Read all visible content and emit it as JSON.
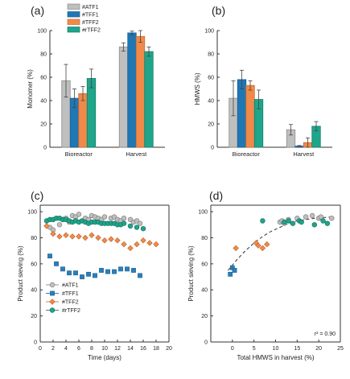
{
  "chart_data": [
    {
      "panel": "(a)",
      "type": "bar",
      "ylabel": "Monomer (%)",
      "xlabel": "",
      "ylim": [
        0,
        100
      ],
      "yticks": [
        0,
        20,
        40,
        60,
        80,
        100
      ],
      "categories": [
        "Bioreactor",
        "Harvest"
      ],
      "series": [
        {
          "name": "#ATF1",
          "values": [
            57,
            86
          ],
          "errors": [
            14,
            3.5
          ]
        },
        {
          "name": "#TFF1",
          "values": [
            42,
            98
          ],
          "errors": [
            8,
            1.5
          ]
        },
        {
          "name": "#TFF2",
          "values": [
            46,
            95
          ],
          "errors": [
            6,
            5
          ]
        },
        {
          "name": "#rTFF2",
          "values": [
            59,
            82
          ],
          "errors": [
            8,
            4
          ]
        }
      ],
      "legend_position": "top-left"
    },
    {
      "panel": "(b)",
      "type": "bar",
      "ylabel": "HMWS (%)",
      "xlabel": "",
      "ylim": [
        0,
        100
      ],
      "yticks": [
        0,
        20,
        40,
        60,
        80,
        100
      ],
      "categories": [
        "Bioreactor",
        "Harvest"
      ],
      "series": [
        {
          "name": "#ATF1",
          "values": [
            42,
            15
          ],
          "errors": [
            15,
            4.5
          ]
        },
        {
          "name": "#TFF1",
          "values": [
            58,
            1
          ],
          "errors": [
            8,
            0.5
          ]
        },
        {
          "name": "#TFF2",
          "values": [
            53,
            4
          ],
          "errors": [
            4,
            4
          ]
        },
        {
          "name": "#rTFF2",
          "values": [
            41,
            18
          ],
          "errors": [
            8,
            4
          ]
        }
      ]
    },
    {
      "panel": "(c)",
      "type": "scatter",
      "xlabel": "Time (days)",
      "ylabel": "Product sieving (%)",
      "xlim": [
        0,
        20
      ],
      "ylim": [
        0,
        105
      ],
      "xticks": [
        0,
        2,
        4,
        6,
        8,
        10,
        12,
        14,
        16,
        18,
        20
      ],
      "yticks": [
        0,
        20,
        40,
        60,
        80,
        100
      ],
      "legend_position": "bottom-left",
      "series": [
        {
          "name": "#ATF1",
          "marker": "circle",
          "x": [
            1.5,
            2,
            3,
            3.5,
            4,
            4.5,
            5,
            5.5,
            6,
            7,
            7.5,
            8,
            8.5,
            9,
            9.5,
            10,
            11,
            11.5,
            12,
            12.5,
            13,
            14,
            14.5,
            15,
            15.5
          ],
          "y": [
            88,
            86,
            90,
            94,
            95,
            92,
            97,
            96,
            98,
            95,
            94,
            97,
            96,
            95,
            94,
            96,
            95,
            96,
            94,
            93,
            95,
            94,
            92,
            93,
            91
          ]
        },
        {
          "name": "#TFF1",
          "marker": "square",
          "x": [
            1.5,
            2.5,
            3.5,
            4.5,
            5.5,
            6.5,
            7.5,
            8.5,
            9.5,
            10.5,
            11.5,
            12.5,
            13.5,
            14.5,
            15.5
          ],
          "y": [
            66,
            60,
            56,
            53,
            53,
            50,
            52,
            51,
            55,
            54,
            54,
            56,
            56,
            55,
            51
          ]
        },
        {
          "name": "#TFF2",
          "marker": "diamond",
          "x": [
            1,
            2,
            3,
            4,
            5,
            6,
            7,
            8,
            9,
            10,
            11,
            12,
            13,
            14,
            15,
            16,
            17,
            18
          ],
          "y": [
            89,
            83,
            81,
            82,
            81,
            81,
            80,
            82,
            80,
            78,
            79,
            78,
            75,
            72,
            75,
            78,
            76,
            75
          ]
        },
        {
          "name": "#rTFF2",
          "marker": "circle",
          "x": [
            1,
            1.5,
            2,
            2.5,
            3,
            3.5,
            4,
            4.5,
            5,
            5.5,
            6,
            6.5,
            7,
            7.5,
            8,
            8.5,
            9,
            9.5,
            10,
            10.5,
            11,
            11.5,
            12,
            12.5,
            13,
            14,
            15,
            16
          ],
          "y": [
            93,
            94,
            94,
            95,
            95,
            94,
            94,
            93,
            92,
            93,
            92,
            93,
            92,
            91,
            92,
            92,
            92,
            91,
            91,
            91,
            91,
            91,
            90,
            90,
            91,
            89,
            88,
            87
          ]
        }
      ]
    },
    {
      "panel": "(d)",
      "type": "scatter",
      "xlabel": "Total HMWS in harvest (%)",
      "ylabel": "Product sieving (%)",
      "xlim": [
        -5,
        25
      ],
      "ylim": [
        0,
        105
      ],
      "xticks": [
        0,
        5,
        10,
        15,
        20,
        25
      ],
      "yticks": [
        0,
        20,
        40,
        60,
        80,
        100
      ],
      "annotation": "r² = 0.90",
      "fit": "dashed saturating curve",
      "series": [
        {
          "name": "#ATF1",
          "marker": "circle",
          "x": [
            11,
            11.5,
            12,
            13,
            15,
            17,
            18.5,
            20,
            20.5,
            23
          ],
          "y": [
            92,
            93,
            91,
            94,
            95,
            96,
            97,
            95,
            96,
            95
          ]
        },
        {
          "name": "#TFF1",
          "marker": "square",
          "x": [
            -0.5,
            0,
            0.5
          ],
          "y": [
            52,
            57,
            55
          ]
        },
        {
          "name": "#TFF2",
          "marker": "diamond",
          "x": [
            0.8,
            5.5,
            6,
            7,
            8
          ],
          "y": [
            72,
            76,
            74,
            72,
            75
          ]
        },
        {
          "name": "#rTFF2",
          "marker": "circle",
          "x": [
            7,
            12,
            13,
            14,
            15.5,
            16,
            19,
            21,
            22
          ],
          "y": [
            93,
            92,
            93,
            91,
            93,
            92,
            90,
            93,
            91
          ]
        }
      ],
      "fit_curve": {
        "x": [
          -1,
          1,
          3,
          5,
          7,
          9,
          11,
          13,
          15,
          17,
          19,
          21,
          23
        ],
        "y": [
          55,
          63,
          70,
          76,
          81,
          85,
          88,
          91,
          93,
          94,
          95,
          95.5,
          96
        ]
      }
    }
  ],
  "colors": {
    "#ATF1": {
      "fill": "#bfbfbf",
      "stroke": "#8c8c8c"
    },
    "#TFF1": {
      "fill": "#1f77b4",
      "stroke": "#1a5f93"
    },
    "#TFF2": {
      "fill": "#f08a4b",
      "stroke": "#d06a2a"
    },
    "#rTFF2": {
      "fill": "#1fa58a",
      "stroke": "#12806b"
    }
  },
  "scatter_colors": {
    "#ATF1": {
      "fill": "#bfbfbf",
      "stroke": "#7a7a7a"
    },
    "#TFF1": {
      "fill": "#2b7fb8",
      "stroke": "#1a5f93"
    },
    "#TFF2": {
      "fill": "#f08a4b",
      "stroke": "#b8652b"
    },
    "#rTFF2": {
      "fill": "#1fa58a",
      "stroke": "#0f6f5c"
    }
  }
}
